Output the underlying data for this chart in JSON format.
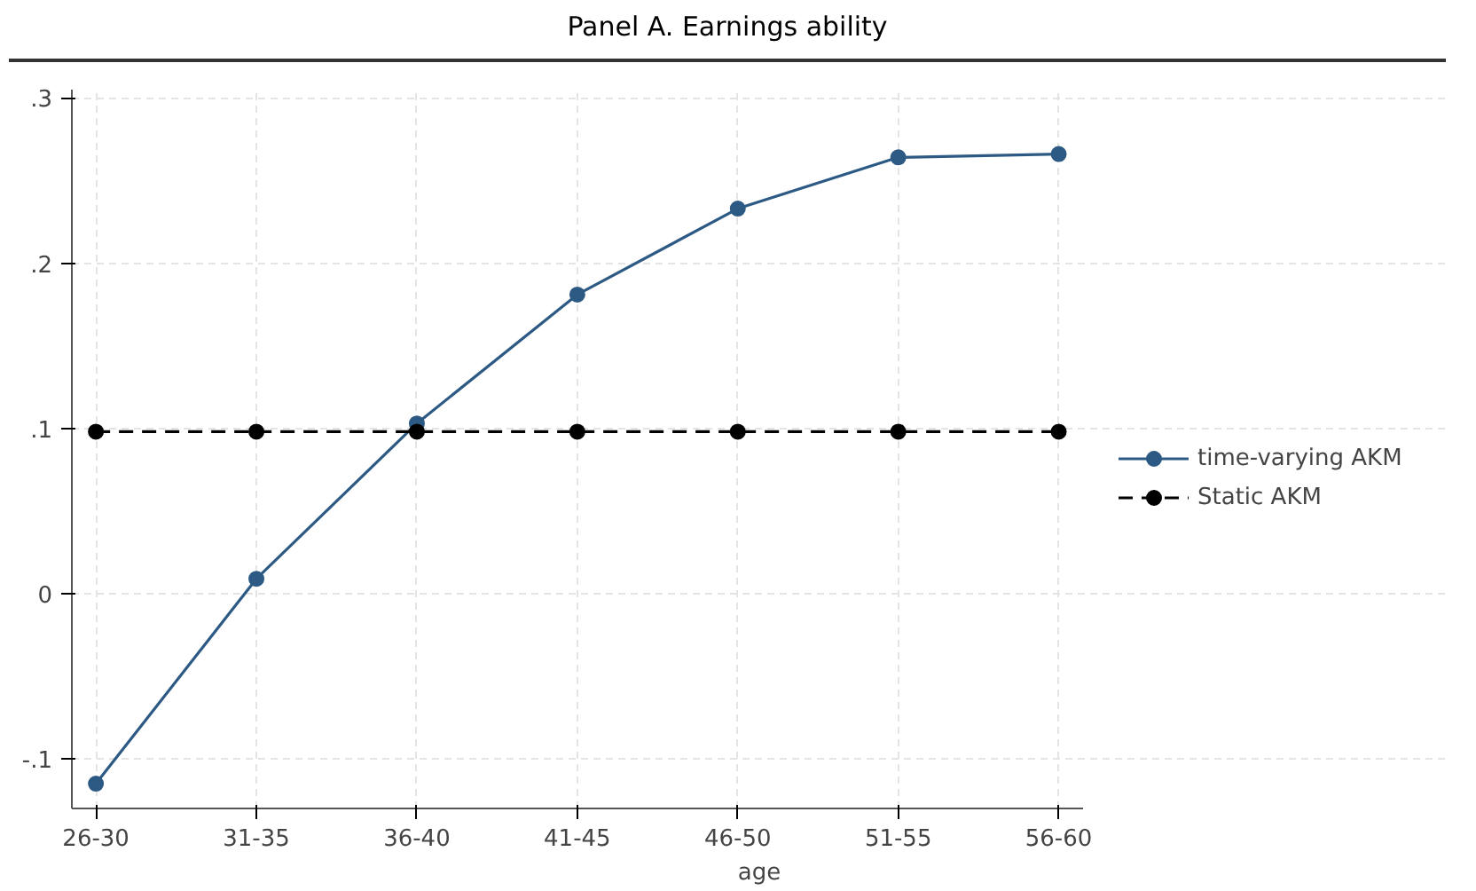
{
  "chart_data": {
    "type": "line",
    "title": "Panel A.  Earnings ability",
    "xlabel": "age",
    "categories": [
      "26-30",
      "31-35",
      "36-40",
      "41-45",
      "46-50",
      "51-55",
      "56-60"
    ],
    "series": [
      {
        "name": "time-varying AKM",
        "color": "#2d5a84",
        "values": [
          -0.115,
          0.009,
          0.103,
          0.181,
          0.233,
          0.264,
          0.266
        ],
        "line_style": "solid"
      },
      {
        "name": "Static AKM",
        "color": "#000000",
        "values": [
          0.098,
          0.098,
          0.098,
          0.098,
          0.098,
          0.098,
          0.098
        ],
        "line_style": "dashed"
      }
    ],
    "ylim": [
      -0.13,
      0.305
    ],
    "yticks": [
      {
        "value": -0.1,
        "label": "-.1"
      },
      {
        "value": 0,
        "label": "0"
      },
      {
        "value": 0.1,
        "label": ".1"
      },
      {
        "value": 0.2,
        "label": ".2"
      },
      {
        "value": 0.3,
        "label": ".3"
      }
    ],
    "grid": true,
    "legend": "right",
    "marker": "circle"
  }
}
